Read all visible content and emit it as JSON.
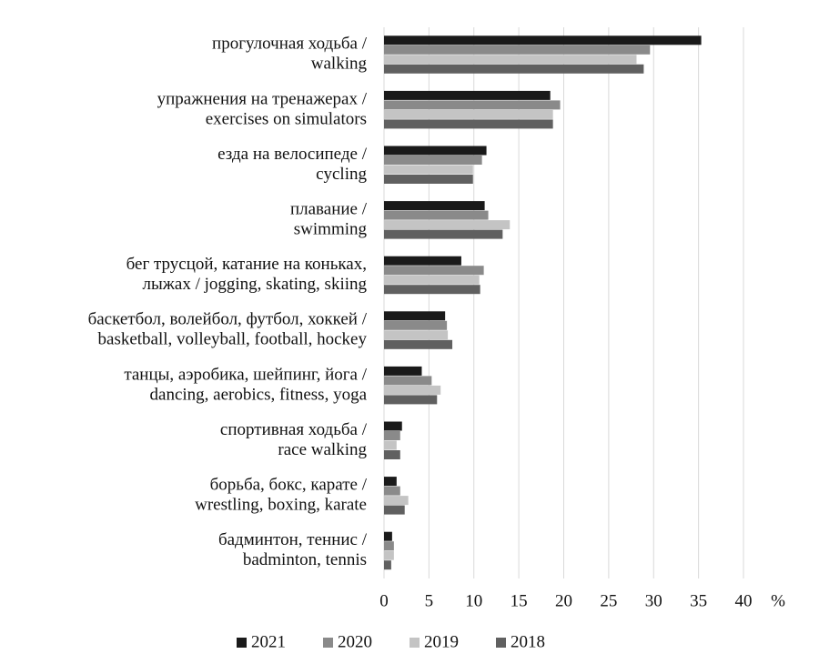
{
  "chart_data": {
    "type": "hbar",
    "categories": [
      [
        "прогулочная ходьба /",
        "walking"
      ],
      [
        "упражнения на тренажерах /",
        "exercises on simulators"
      ],
      [
        "езда на велосипеде /",
        "cycling"
      ],
      [
        "плавание /",
        "swimming"
      ],
      [
        "бег трусцой, катание на коньках,",
        "лыжах / jogging, skating, skiing"
      ],
      [
        "баскетбол, волейбол, футбол, хоккей /",
        "basketball, volleyball, football, hockey"
      ],
      [
        "танцы, аэробика, шейпинг, йога /",
        "dancing, aerobics, fitness, yoga"
      ],
      [
        "спортивная ходьба /",
        "race walking"
      ],
      [
        "борьба, бокс, карате /",
        "wrestling, boxing, karate"
      ],
      [
        "бадминтон, теннис /",
        "badminton, tennis"
      ]
    ],
    "series": [
      {
        "name": "2021",
        "color": "#1a1a1a",
        "values": [
          35.3,
          18.5,
          11.4,
          11.2,
          8.6,
          6.8,
          4.2,
          2.0,
          1.4,
          0.9
        ]
      },
      {
        "name": "2020",
        "color": "#8a8a8a",
        "values": [
          29.6,
          19.6,
          10.9,
          11.6,
          11.1,
          7.0,
          5.3,
          1.8,
          1.8,
          1.1
        ]
      },
      {
        "name": "2019",
        "color": "#c4c4c4",
        "values": [
          28.1,
          18.8,
          9.9,
          14.0,
          10.6,
          7.1,
          6.3,
          1.4,
          2.7,
          1.1
        ]
      },
      {
        "name": "2018",
        "color": "#606060",
        "values": [
          28.9,
          18.8,
          9.9,
          13.2,
          10.7,
          7.6,
          5.9,
          1.8,
          2.3,
          0.8
        ]
      }
    ],
    "xlabel": "%",
    "xlim": [
      0,
      40
    ],
    "xticks": [
      0,
      5,
      10,
      15,
      20,
      25,
      30,
      35,
      40
    ],
    "grid": true
  }
}
